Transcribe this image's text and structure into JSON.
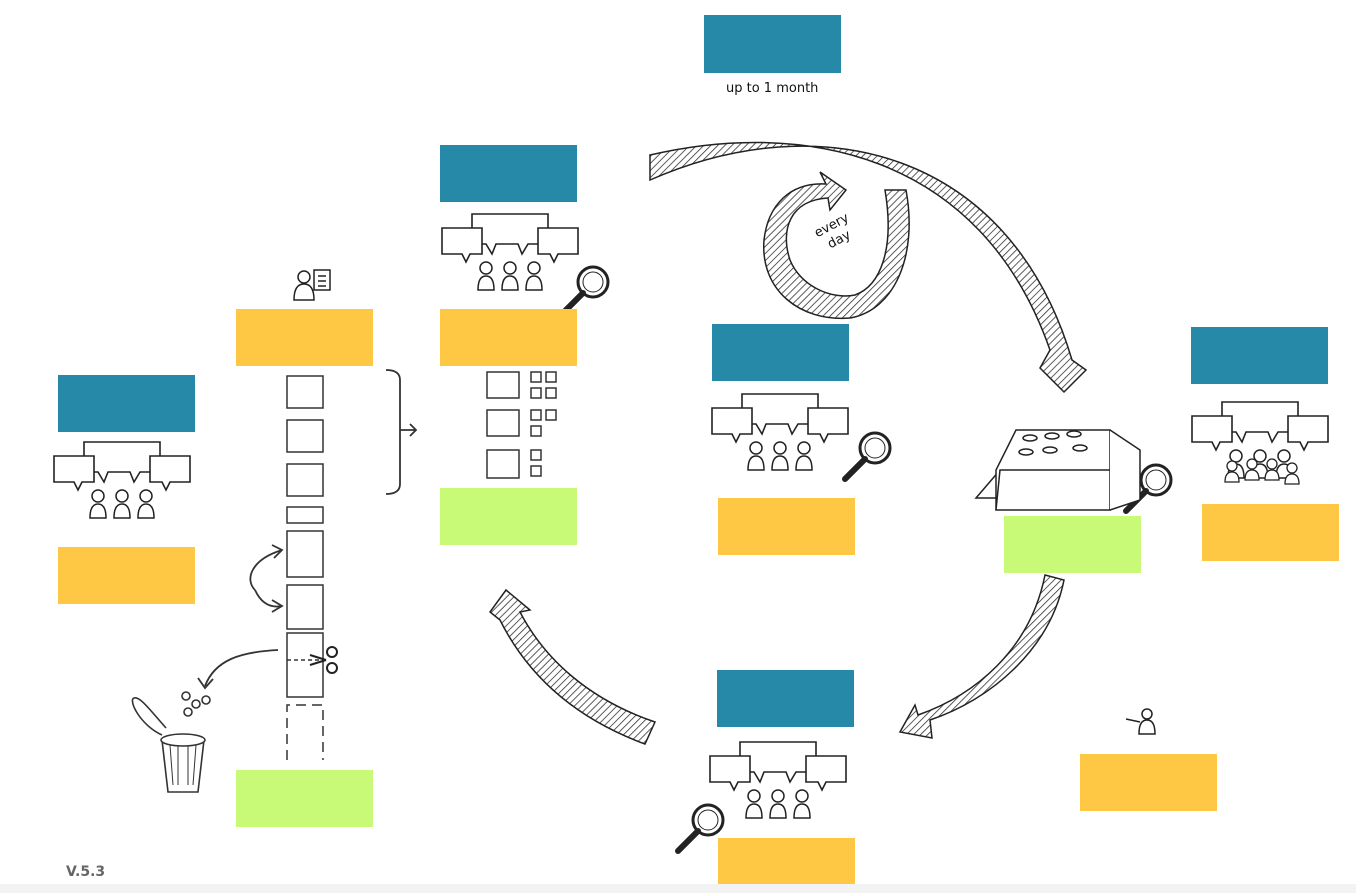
{
  "header": {
    "duration_label": "up to 1 month"
  },
  "daily_loop": {
    "line1": "every",
    "line2": "day"
  },
  "footer": {
    "version": "V.5.3"
  },
  "colors": {
    "blue": "#2789a8",
    "yellow": "#fec844",
    "green": "#c8fa78"
  }
}
